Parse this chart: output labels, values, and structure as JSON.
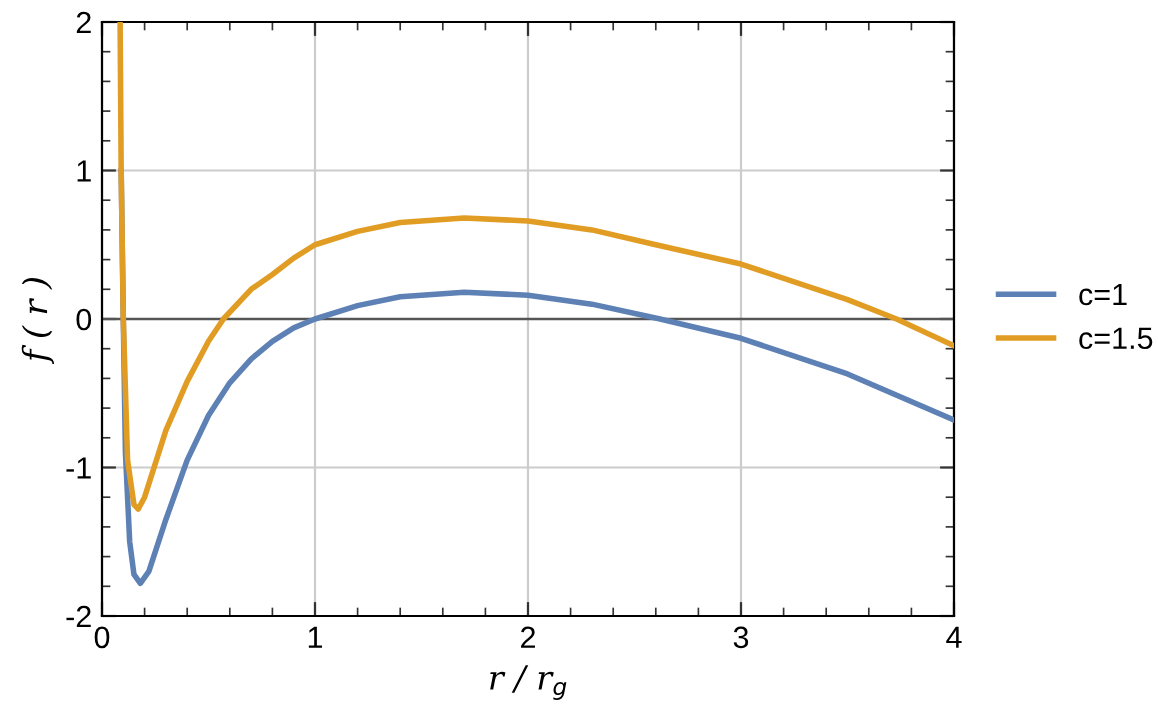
{
  "chart_data": {
    "type": "line",
    "xlabel": "r / r$_{g}$",
    "ylabel": "f ( r )",
    "xlim": [
      0,
      4
    ],
    "ylim": [
      -2,
      2
    ],
    "xticks": [
      0,
      {
        "value": 0.2,
        "label": null
      },
      {
        "value": 0.4,
        "label": null
      },
      {
        "value": 0.6,
        "label": null
      },
      {
        "value": 0.8,
        "label": null
      },
      1,
      {
        "value": 1.2,
        "label": null
      },
      {
        "value": 1.4,
        "label": null
      },
      {
        "value": 1.6,
        "label": null
      },
      {
        "value": 1.8,
        "label": null
      },
      2,
      {
        "value": 2.2,
        "label": null
      },
      {
        "value": 2.4,
        "label": null
      },
      {
        "value": 2.6,
        "label": null
      },
      {
        "value": 2.8,
        "label": null
      },
      3,
      {
        "value": 3.2,
        "label": null
      },
      {
        "value": 3.4,
        "label": null
      },
      {
        "value": 3.6,
        "label": null
      },
      {
        "value": 3.8,
        "label": null
      },
      4
    ],
    "yticks": [
      -2,
      {
        "value": -1.8,
        "label": null
      },
      {
        "value": -1.6,
        "label": null
      },
      {
        "value": -1.4,
        "label": null
      },
      {
        "value": -1.2,
        "label": null
      },
      -1,
      {
        "value": -0.8,
        "label": null
      },
      {
        "value": -0.6,
        "label": null
      },
      {
        "value": -0.4,
        "label": null
      },
      {
        "value": -0.2,
        "label": null
      },
      0,
      {
        "value": 0.2,
        "label": null
      },
      {
        "value": 0.4,
        "label": null
      },
      {
        "value": 0.6,
        "label": null
      },
      {
        "value": 0.8,
        "label": null
      },
      1,
      {
        "value": 1.2,
        "label": null
      },
      {
        "value": 1.4,
        "label": null
      },
      {
        "value": 1.6,
        "label": null
      },
      {
        "value": 1.8,
        "label": null
      },
      2
    ],
    "grid": true,
    "legend": "right",
    "marker": "none",
    "line_style": "solid",
    "ref_lines": [
      {
        "axis": "y",
        "value": 0,
        "color": "#555555"
      }
    ],
    "series": [
      {
        "name": "c=1",
        "color": "#5e81b5",
        "x": [
          0.09,
          0.1,
          0.11,
          0.13,
          0.15,
          0.18,
          0.22,
          0.3,
          0.4,
          0.5,
          0.6,
          0.7,
          0.8,
          0.9,
          1.0,
          1.2,
          1.4,
          1.7,
          2.0,
          2.3,
          2.62,
          3.0,
          3.5,
          4.0
        ],
        "values": [
          1,
          0,
          -0.9,
          -1.5,
          -1.72,
          -1.78,
          -1.7,
          -1.35,
          -0.95,
          -0.65,
          -0.43,
          -0.27,
          -0.15,
          -0.06,
          0,
          0.09,
          0.15,
          0.18,
          0.16,
          0.1,
          0,
          -0.13,
          -0.37,
          -0.68
        ]
      },
      {
        "name": "c=1.5",
        "color": "#e19c24",
        "x": [
          0.085,
          0.09,
          0.1,
          0.12,
          0.15,
          0.17,
          0.2,
          0.3,
          0.4,
          0.5,
          0.57,
          0.7,
          0.8,
          0.9,
          1.0,
          1.2,
          1.4,
          1.7,
          2.0,
          2.3,
          2.6,
          3.0,
          3.5,
          3.73,
          4.0
        ],
        "values": [
          2,
          1,
          0,
          -0.95,
          -1.25,
          -1.28,
          -1.2,
          -0.75,
          -0.42,
          -0.15,
          0,
          0.2,
          0.3,
          0.41,
          0.5,
          0.59,
          0.65,
          0.68,
          0.66,
          0.6,
          0.5,
          0.37,
          0.13,
          0,
          -0.18
        ]
      }
    ]
  }
}
